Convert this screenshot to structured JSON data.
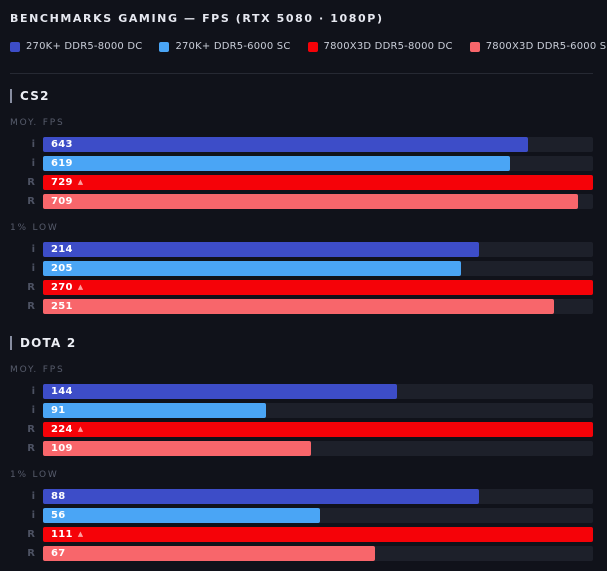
{
  "title": "BENCHMARKS GAMING — FPS (RTX 5080 · 1080P)",
  "winner_marker": "▲",
  "legend": [
    {
      "label": "270K+ DDR5-8000 DC",
      "color": "#3d4dc8"
    },
    {
      "label": "270K+ DDR5-6000 SC",
      "color": "#4aa5f5"
    },
    {
      "label": "7800X3D DDR5-8000 DC",
      "color": "#f50208"
    },
    {
      "label": "7800X3D DDR5-6000 SC",
      "color": "#f8666b"
    }
  ],
  "colors": {
    "background": "#10121a",
    "track": "#1d202a",
    "divider": "#262933",
    "title_text": "#e6e8f0",
    "muted_text": "#575c6c",
    "row_tag_text": "#4d5263",
    "value_text": "#ffffff",
    "winner_marker_color": "#ff9e9e",
    "section_accent": "#878da0"
  },
  "chart_data": {
    "type": "bar",
    "title": "BENCHMARKS GAMING — FPS (RTX 5080 · 1080P)",
    "orientation": "horizontal",
    "unit": "FPS",
    "scaling": "bars normalized per group; longest bar (winner) spans full track width",
    "series_labels": [
      "270K+ DDR5-8000 DC",
      "270K+ DDR5-6000 SC",
      "7800X3D DDR5-8000 DC",
      "7800X3D DDR5-6000 SC"
    ],
    "series_tags": [
      "i",
      "i",
      "R",
      "R"
    ],
    "series_colors": [
      "#3d4dc8",
      "#4aa5f5",
      "#f50208",
      "#f8666b"
    ],
    "sections": [
      {
        "game": "CS2",
        "groups": [
          {
            "label": "MOY. FPS",
            "values": [
              643,
              619,
              729,
              709
            ],
            "winner_index": 2
          },
          {
            "label": "1% LOW",
            "values": [
              214,
              205,
              270,
              251
            ],
            "winner_index": 2
          }
        ]
      },
      {
        "game": "DOTA 2",
        "groups": [
          {
            "label": "MOY. FPS",
            "values": [
              144,
              91,
              224,
              109
            ],
            "winner_index": 2
          },
          {
            "label": "1% LOW",
            "values": [
              88,
              56,
              111,
              67
            ],
            "winner_index": 2
          }
        ]
      }
    ]
  }
}
